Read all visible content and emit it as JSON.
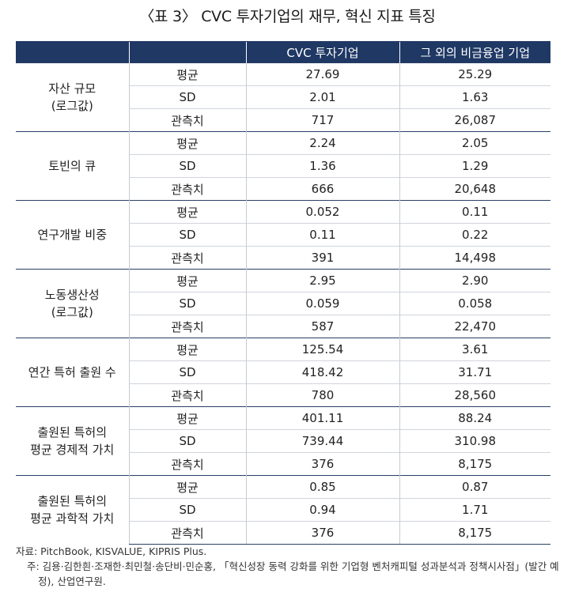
{
  "title": "〈표 3〉 CVC 투자기업의 재무, 혁신 지표 특징",
  "headers": {
    "col_cvc": "CVC 투자기업",
    "col_other": "그 외의 비금융업 기업"
  },
  "groups": [
    {
      "label_line1": "자산 규모",
      "label_line2": "(로그값)",
      "rows": [
        {
          "metric": "평균",
          "cvc": "27.69",
          "other": "25.29"
        },
        {
          "metric": "SD",
          "cvc": "2.01",
          "other": "1.63"
        },
        {
          "metric": "관측치",
          "cvc": "717",
          "other": "26,087"
        }
      ]
    },
    {
      "label_line1": "토빈의 큐",
      "label_line2": "",
      "rows": [
        {
          "metric": "평균",
          "cvc": "2.24",
          "other": "2.05"
        },
        {
          "metric": "SD",
          "cvc": "1.36",
          "other": "1.29"
        },
        {
          "metric": "관측치",
          "cvc": "666",
          "other": "20,648"
        }
      ]
    },
    {
      "label_line1": "연구개발 비중",
      "label_line2": "",
      "rows": [
        {
          "metric": "평균",
          "cvc": "0.052",
          "other": "0.11"
        },
        {
          "metric": "SD",
          "cvc": "0.11",
          "other": "0.22"
        },
        {
          "metric": "관측치",
          "cvc": "391",
          "other": "14,498"
        }
      ]
    },
    {
      "label_line1": "노동생산성",
      "label_line2": "(로그값)",
      "rows": [
        {
          "metric": "평균",
          "cvc": "2.95",
          "other": "2.90"
        },
        {
          "metric": "SD",
          "cvc": "0.059",
          "other": "0.058"
        },
        {
          "metric": "관측치",
          "cvc": "587",
          "other": "22,470"
        }
      ]
    },
    {
      "label_line1": "연간 특허 출원 수",
      "label_line2": "",
      "rows": [
        {
          "metric": "평균",
          "cvc": "125.54",
          "other": "3.61"
        },
        {
          "metric": "SD",
          "cvc": "418.42",
          "other": "31.71"
        },
        {
          "metric": "관측치",
          "cvc": "780",
          "other": "28,560"
        }
      ]
    },
    {
      "label_line1": "출원된 특허의",
      "label_line2": "평균 경제적 가치",
      "rows": [
        {
          "metric": "평균",
          "cvc": "401.11",
          "other": "88.24"
        },
        {
          "metric": "SD",
          "cvc": "739.44",
          "other": "310.98"
        },
        {
          "metric": "관측치",
          "cvc": "376",
          "other": "8,175"
        }
      ]
    },
    {
      "label_line1": "출원된 특허의",
      "label_line2": "평균 과학적 가치",
      "rows": [
        {
          "metric": "평균",
          "cvc": "0.85",
          "other": "0.87"
        },
        {
          "metric": "SD",
          "cvc": "0.94",
          "other": "1.71"
        },
        {
          "metric": "관측치",
          "cvc": "376",
          "other": "8,175"
        }
      ]
    }
  ],
  "notes": {
    "source": "자료: PitchBook, KISVALUE, KIPRIS Plus.",
    "footnote": "주: 김용·김한흰·조재한·최민철·송단비·민순홍, 「혁신성장 동력 강화를 위한 기업형 벤처캐피털 성과분석과 정책시사점」(발간 예정), 산업연구원."
  }
}
